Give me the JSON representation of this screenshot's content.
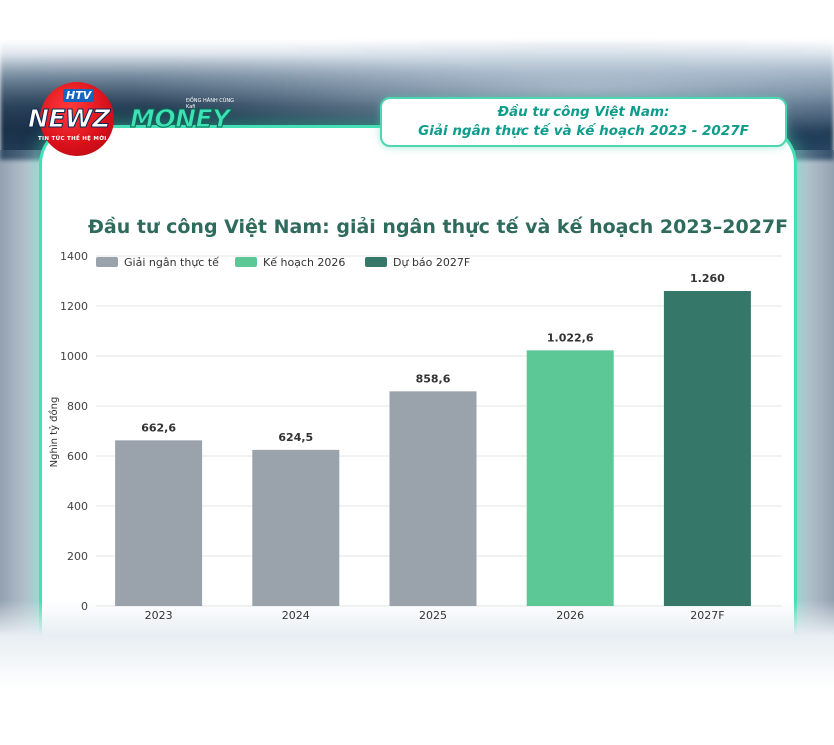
{
  "logo": {
    "brand_top": "HTV",
    "brand_left": "NEWZ",
    "brand_right": "MONEY",
    "tagline": "TIN TỨC THẾ HỆ MỚI",
    "sponsor": "ĐỒNG HÀNH CÙNG Kafi"
  },
  "header": {
    "line1": "Đầu tư công Việt Nam:",
    "line2": "Giải ngân thực tế và kế hoạch 2023 - 2027F"
  },
  "colors": {
    "actual": "#9aa2ac",
    "plan": "#5cc896",
    "forecast": "#35786a",
    "accent": "#42e0b4",
    "title": "#2f6b5d"
  },
  "chart_data": {
    "type": "bar",
    "title": "Đầu tư công Việt Nam: giải ngân thực tế và kế hoạch 2023–2027F",
    "xlabel": "",
    "ylabel": "Nghìn tỷ đồng",
    "ylim": [
      0,
      1400
    ],
    "yticks": [
      0,
      200,
      400,
      600,
      800,
      1000,
      1200,
      1400
    ],
    "categories": [
      "2023",
      "2024",
      "2025",
      "2026",
      "2027F"
    ],
    "values": [
      662.6,
      624.5,
      858.6,
      1022.6,
      1260
    ],
    "value_labels": [
      "662,6",
      "624,5",
      "858,6",
      "1.022,6",
      "1.260"
    ],
    "bar_series": [
      "actual",
      "actual",
      "actual",
      "plan",
      "forecast"
    ],
    "legend": [
      {
        "key": "actual",
        "label": "Giải ngân thực tế"
      },
      {
        "key": "plan",
        "label": "Kế hoạch 2026"
      },
      {
        "key": "forecast",
        "label": "Dự báo 2027F"
      }
    ],
    "legend_position": "top-left",
    "grid": true
  }
}
